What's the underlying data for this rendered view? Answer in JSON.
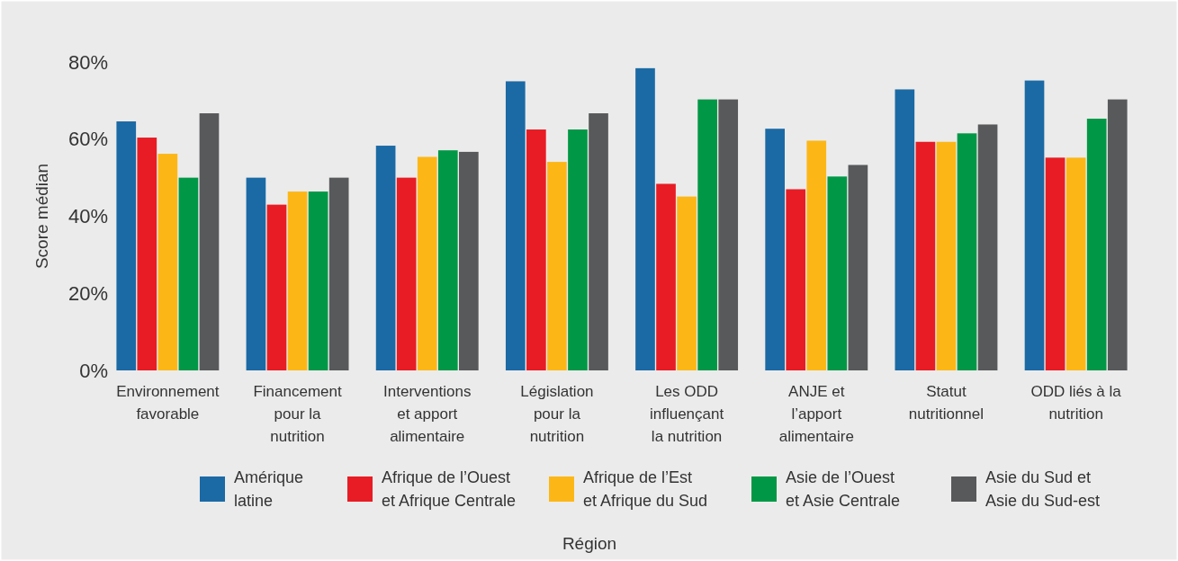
{
  "chart_data": {
    "type": "bar",
    "legend_title": "Région",
    "ylabel": "Score médian",
    "categories": [
      "Environnement favorable",
      "Financement pour la nutrition",
      "Interventions et apport alimentaire",
      "Législation pour la nutrition",
      "Les ODD influençant la nutrition",
      "ANJE et l’apport alimentaire",
      "Statut nutritionnel",
      "ODD liés à la nutrition"
    ],
    "series": [
      {
        "name": "Amérique latine",
        "color": "#1b6aa5",
        "values": [
          64.6,
          50,
          58.3,
          75,
          78.4,
          62.7,
          72.9,
          75.2
        ]
      },
      {
        "name": "Afrique de l’Ouest et Afrique Centrale",
        "color": "#e81c24",
        "values": [
          60.4,
          43,
          50,
          62.5,
          48.4,
          47,
          59.3,
          55.2
        ]
      },
      {
        "name": "Afrique de l’Est et Afrique du Sud",
        "color": "#fcb717",
        "values": [
          56.2,
          46.4,
          55.4,
          54.1,
          45.1,
          59.6,
          59.3,
          55.2
        ]
      },
      {
        "name": "Asie de l’Ouest et Asie Centrale",
        "color": "#009846",
        "values": [
          50,
          46.4,
          57.1,
          62.5,
          70.3,
          50.3,
          61.5,
          65.3
        ]
      },
      {
        "name": "Asie du Sud et Asie du Sud-est",
        "color": "#58595b",
        "values": [
          66.7,
          50,
          56.7,
          66.7,
          70.3,
          53.3,
          63.8,
          70.3
        ]
      }
    ],
    "ylim": [
      0,
      80
    ],
    "yticks": [
      {
        "value": 0,
        "label": "0%"
      },
      {
        "value": 20,
        "label": "20%"
      },
      {
        "value": 40,
        "label": "40%"
      },
      {
        "value": 60,
        "label": "60%"
      },
      {
        "value": 80,
        "label": "80%"
      }
    ],
    "legend": "bottom",
    "grid": false
  }
}
